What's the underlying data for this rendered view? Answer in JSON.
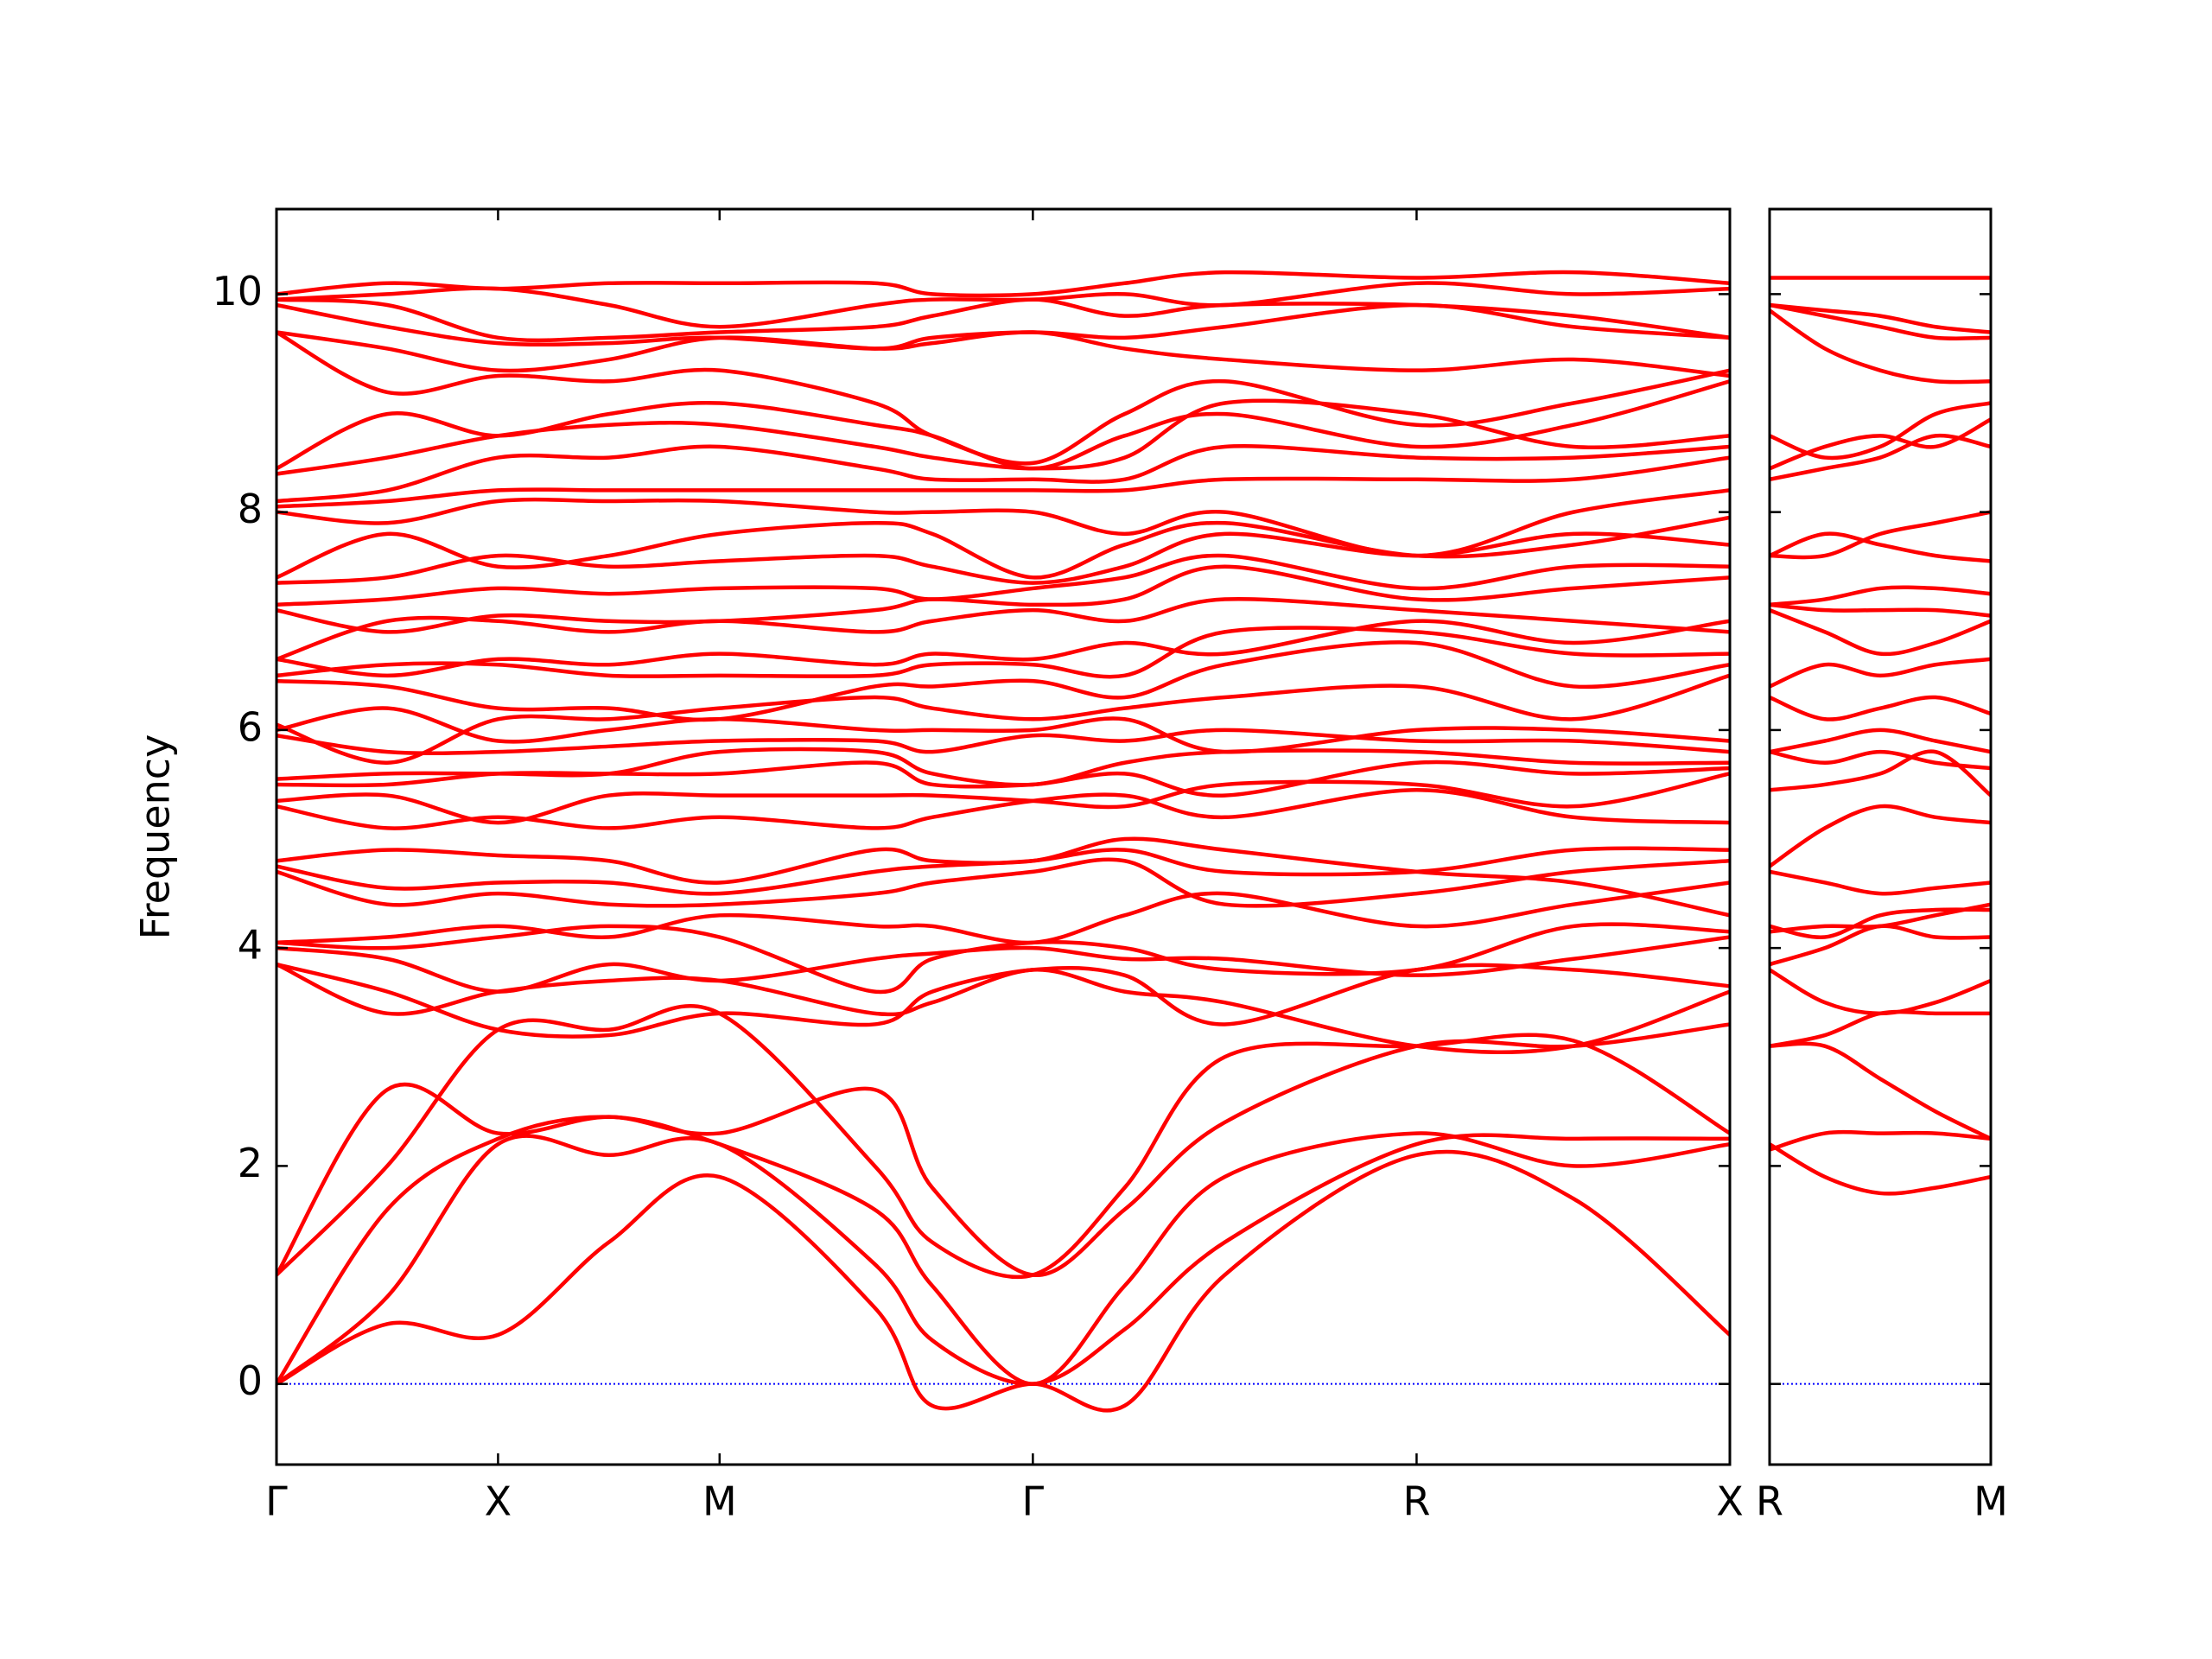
{
  "chart_data": [
    {
      "type": "line",
      "ylabel": "Frequency",
      "color": "#ff0000",
      "xlim": [
        0,
        3.28
      ],
      "ylim": [
        -0.74,
        10.78
      ],
      "xticks": [
        {
          "value": 0,
          "label": "Γ"
        },
        {
          "value": 0.5,
          "label": "X"
        },
        {
          "value": 1.0,
          "label": "M"
        },
        {
          "value": 1.707,
          "label": "Γ"
        },
        {
          "value": 2.573,
          "label": "R"
        },
        {
          "value": 3.28,
          "label": "X"
        }
      ],
      "yticks": [
        0,
        2,
        4,
        6,
        8,
        10
      ],
      "ytick_labels": true,
      "zero_line": {
        "value": 0,
        "color": "#0000ff"
      },
      "x": [
        0,
        0.25,
        0.5,
        0.75,
        1.0,
        1.35,
        1.48,
        1.707,
        1.914,
        2.14,
        2.573,
        2.927,
        3.28
      ],
      "series": [
        {
          "values": [
            0,
            0.55,
            0.45,
            1.3,
            1.9,
            0.7,
            -0.2,
            0,
            -0.2,
            1.0,
            2.1,
            1.7,
            0.45
          ]
        },
        {
          "values": [
            0,
            0.8,
            2.2,
            2.1,
            2.2,
            1.1,
            0.4,
            0,
            0.5,
            1.3,
            2.2,
            2.25,
            2.25
          ]
        },
        {
          "values": [
            0,
            1.6,
            2.25,
            2.45,
            2.2,
            1.6,
            0.9,
            0,
            0.9,
            1.9,
            2.3,
            2.0,
            2.2
          ]
        },
        {
          "values": [
            1.0,
            2.7,
            2.3,
            2.45,
            2.3,
            2.7,
            1.8,
            1.0,
            1.6,
            2.4,
            3.1,
            3.1,
            3.3
          ]
        },
        {
          "values": [
            1.0,
            2.0,
            3.25,
            3.25,
            3.4,
            2.0,
            1.3,
            1.0,
            1.8,
            3.0,
            3.1,
            3.15,
            2.3
          ]
        },
        {
          "values": [
            3.85,
            3.4,
            3.6,
            3.7,
            3.7,
            3.4,
            3.5,
            3.8,
            3.6,
            3.5,
            3.1,
            3.1,
            3.6
          ]
        },
        {
          "values": [
            3.85,
            3.6,
            3.25,
            3.2,
            3.4,
            3.3,
            3.6,
            3.8,
            3.75,
            3.3,
            3.8,
            3.8,
            3.65
          ]
        },
        {
          "values": [
            4.0,
            3.9,
            3.6,
            3.85,
            3.7,
            3.9,
            3.95,
            4.0,
            3.9,
            3.9,
            3.75,
            3.9,
            4.1
          ]
        },
        {
          "values": [
            4.05,
            4.0,
            4.1,
            4.2,
            4.1,
            3.6,
            3.9,
            4.05,
            4.0,
            3.8,
            3.8,
            4.2,
            4.15
          ]
        },
        {
          "values": [
            4.05,
            4.1,
            4.2,
            4.1,
            4.3,
            4.2,
            4.2,
            4.05,
            4.3,
            4.5,
            4.2,
            4.4,
            4.6
          ]
        },
        {
          "values": [
            4.7,
            4.4,
            4.5,
            4.4,
            4.4,
            4.5,
            4.6,
            4.7,
            4.8,
            4.4,
            4.5,
            4.7,
            4.8
          ]
        },
        {
          "values": [
            4.75,
            4.55,
            4.6,
            4.6,
            4.5,
            4.7,
            4.75,
            4.8,
            4.9,
            4.7,
            4.7,
            4.9,
            4.9
          ]
        },
        {
          "values": [
            4.8,
            4.9,
            4.85,
            4.8,
            4.6,
            4.9,
            4.8,
            4.8,
            5.0,
            4.9,
            4.7,
            4.6,
            4.3
          ]
        },
        {
          "values": [
            5.3,
            5.1,
            5.2,
            5.1,
            5.2,
            5.1,
            5.2,
            5.35,
            5.4,
            5.2,
            5.45,
            5.2,
            5.15
          ]
        },
        {
          "values": [
            5.35,
            5.4,
            5.15,
            5.4,
            5.4,
            5.4,
            5.4,
            5.35,
            5.3,
            5.5,
            5.5,
            5.3,
            5.6
          ]
        },
        {
          "values": [
            5.5,
            5.5,
            5.6,
            5.6,
            5.6,
            5.7,
            5.5,
            5.5,
            5.6,
            5.4,
            5.7,
            5.6,
            5.65
          ]
        },
        {
          "values": [
            5.55,
            5.6,
            5.6,
            5.6,
            5.8,
            5.8,
            5.6,
            5.5,
            5.7,
            5.8,
            5.8,
            5.7,
            5.7
          ]
        },
        {
          "values": [
            5.95,
            5.8,
            5.8,
            5.85,
            5.9,
            5.9,
            5.8,
            5.95,
            5.9,
            6.0,
            5.9,
            5.9,
            5.8
          ]
        },
        {
          "values": [
            6.0,
            6.2,
            5.9,
            6.0,
            6.1,
            6.0,
            6.0,
            6.0,
            6.1,
            5.8,
            6.0,
            6.0,
            5.9
          ]
        },
        {
          "values": [
            6.05,
            5.7,
            6.1,
            6.1,
            6.2,
            6.3,
            6.2,
            6.1,
            6.2,
            6.3,
            6.4,
            6.1,
            6.5
          ]
        },
        {
          "values": [
            6.45,
            6.4,
            6.2,
            6.2,
            6.1,
            6.4,
            6.4,
            6.45,
            6.3,
            6.6,
            6.8,
            6.4,
            6.6
          ]
        },
        {
          "values": [
            6.5,
            6.6,
            6.6,
            6.5,
            6.5,
            6.5,
            6.6,
            6.6,
            6.5,
            6.9,
            6.9,
            6.7,
            6.7
          ]
        },
        {
          "values": [
            6.65,
            6.5,
            6.65,
            6.6,
            6.7,
            6.6,
            6.7,
            6.65,
            6.8,
            6.7,
            7.0,
            6.8,
            7.0
          ]
        },
        {
          "values": [
            6.65,
            7.0,
            7.0,
            6.9,
            7.0,
            6.9,
            7.0,
            7.1,
            7.0,
            7.2,
            7.1,
            7.0,
            6.9
          ]
        },
        {
          "values": [
            7.1,
            6.9,
            7.05,
            7.0,
            7.0,
            7.1,
            7.2,
            7.15,
            7.2,
            7.5,
            7.2,
            7.3,
            7.4
          ]
        },
        {
          "values": [
            7.15,
            7.2,
            7.3,
            7.25,
            7.3,
            7.3,
            7.2,
            7.3,
            7.4,
            7.6,
            7.3,
            7.5,
            7.5
          ]
        },
        {
          "values": [
            7.35,
            7.4,
            7.6,
            7.5,
            7.55,
            7.6,
            7.5,
            7.35,
            7.5,
            7.8,
            7.6,
            7.8,
            7.7
          ]
        },
        {
          "values": [
            7.4,
            7.8,
            7.5,
            7.6,
            7.8,
            7.9,
            7.8,
            7.4,
            7.7,
            7.9,
            7.6,
            7.7,
            7.95
          ]
        },
        {
          "values": [
            8.0,
            7.9,
            8.1,
            8.1,
            8.1,
            8.0,
            8.0,
            8.0,
            7.8,
            8.0,
            7.6,
            8.0,
            8.2
          ]
        },
        {
          "values": [
            8.05,
            8.1,
            8.2,
            8.2,
            8.2,
            8.2,
            8.2,
            8.2,
            8.2,
            8.3,
            8.3,
            8.3,
            8.5
          ]
        },
        {
          "values": [
            8.1,
            8.2,
            8.5,
            8.5,
            8.6,
            8.4,
            8.3,
            8.3,
            8.3,
            8.6,
            8.5,
            8.5,
            8.6
          ]
        },
        {
          "values": [
            8.35,
            8.5,
            8.7,
            8.8,
            8.8,
            8.6,
            8.5,
            8.4,
            8.5,
            9.0,
            8.9,
            8.6,
            8.7
          ]
        },
        {
          "values": [
            8.4,
            8.9,
            8.7,
            8.9,
            9.0,
            8.8,
            8.7,
            8.4,
            8.7,
            8.9,
            8.6,
            8.8,
            9.2
          ]
        },
        {
          "values": [
            9.65,
            9.1,
            9.25,
            9.2,
            9.3,
            9.0,
            8.7,
            8.45,
            8.9,
            9.2,
            8.8,
            9.0,
            9.3
          ]
        },
        {
          "values": [
            9.65,
            9.5,
            9.3,
            9.4,
            9.6,
            9.5,
            9.55,
            9.65,
            9.5,
            9.4,
            9.3,
            9.4,
            9.25
          ]
        },
        {
          "values": [
            9.9,
            9.7,
            9.55,
            9.55,
            9.6,
            9.5,
            9.6,
            9.65,
            9.6,
            9.7,
            9.9,
            9.7,
            9.6
          ]
        },
        {
          "values": [
            9.95,
            9.9,
            9.6,
            9.6,
            9.65,
            9.7,
            9.8,
            9.95,
            9.8,
            9.9,
            9.9,
            9.8,
            9.6
          ]
        },
        {
          "values": [
            9.95,
            10.0,
            10.05,
            9.9,
            9.7,
            9.9,
            9.95,
            9.95,
            10.0,
            9.9,
            10.1,
            10.0,
            10.05
          ]
        },
        {
          "values": [
            10.0,
            10.1,
            10.05,
            10.1,
            10.1,
            10.1,
            10.0,
            10.0,
            10.1,
            10.2,
            10.15,
            10.2,
            10.1
          ]
        }
      ]
    },
    {
      "type": "line",
      "color": "#ff0000",
      "xlim": [
        0,
        0.5
      ],
      "ylim": [
        -0.74,
        10.78
      ],
      "xticks": [
        {
          "value": 0,
          "label": "R"
        },
        {
          "value": 0.5,
          "label": "M"
        }
      ],
      "yticks": [
        0,
        2,
        4,
        6,
        8,
        10
      ],
      "ytick_labels": false,
      "zero_line": {
        "value": 0,
        "color": "#0000ff"
      },
      "x": [
        0,
        0.125,
        0.25,
        0.375,
        0.5
      ],
      "series": [
        {
          "values": [
            2.15,
            2.3,
            2.3,
            2.3,
            2.25
          ]
        },
        {
          "values": [
            2.2,
            1.9,
            1.75,
            1.8,
            1.9
          ]
        },
        {
          "values": [
            3.1,
            3.1,
            2.8,
            2.5,
            2.25
          ]
        },
        {
          "values": [
            3.1,
            3.2,
            3.4,
            3.4,
            3.4
          ]
        },
        {
          "values": [
            3.8,
            3.5,
            3.4,
            3.5,
            3.7
          ]
        },
        {
          "values": [
            3.85,
            4.0,
            4.2,
            4.1,
            4.1
          ]
        },
        {
          "values": [
            4.15,
            4.2,
            4.2,
            4.3,
            4.4
          ]
        },
        {
          "values": [
            4.2,
            4.1,
            4.3,
            4.35,
            4.35
          ]
        },
        {
          "values": [
            4.7,
            4.6,
            4.5,
            4.55,
            4.6
          ]
        },
        {
          "values": [
            4.75,
            5.1,
            5.3,
            5.2,
            5.15
          ]
        },
        {
          "values": [
            5.45,
            5.5,
            5.6,
            5.8,
            5.4
          ]
        },
        {
          "values": [
            5.8,
            5.7,
            5.8,
            5.7,
            5.65
          ]
        },
        {
          "values": [
            5.8,
            5.9,
            6.0,
            5.9,
            5.8
          ]
        },
        {
          "values": [
            6.3,
            6.1,
            6.2,
            6.3,
            6.15
          ]
        },
        {
          "values": [
            6.4,
            6.6,
            6.5,
            6.6,
            6.65
          ]
        },
        {
          "values": [
            7.1,
            6.9,
            6.7,
            6.8,
            7.0
          ]
        },
        {
          "values": [
            7.15,
            7.1,
            7.1,
            7.1,
            7.05
          ]
        },
        {
          "values": [
            7.15,
            7.2,
            7.3,
            7.3,
            7.25
          ]
        },
        {
          "values": [
            7.6,
            7.8,
            7.7,
            7.6,
            7.55
          ]
        },
        {
          "values": [
            7.6,
            7.6,
            7.8,
            7.9,
            8.0
          ]
        },
        {
          "values": [
            8.3,
            8.4,
            8.5,
            8.7,
            8.6
          ]
        },
        {
          "values": [
            8.4,
            8.6,
            8.7,
            8.6,
            8.85
          ]
        },
        {
          "values": [
            8.7,
            8.5,
            8.6,
            8.9,
            9.0
          ]
        },
        {
          "values": [
            9.85,
            9.5,
            9.3,
            9.2,
            9.2
          ]
        },
        {
          "values": [
            9.9,
            9.8,
            9.7,
            9.6,
            9.6
          ]
        },
        {
          "values": [
            9.9,
            9.85,
            9.8,
            9.7,
            9.65
          ]
        },
        {
          "values": [
            10.15,
            10.15,
            10.15,
            10.15,
            10.15
          ]
        }
      ]
    }
  ]
}
